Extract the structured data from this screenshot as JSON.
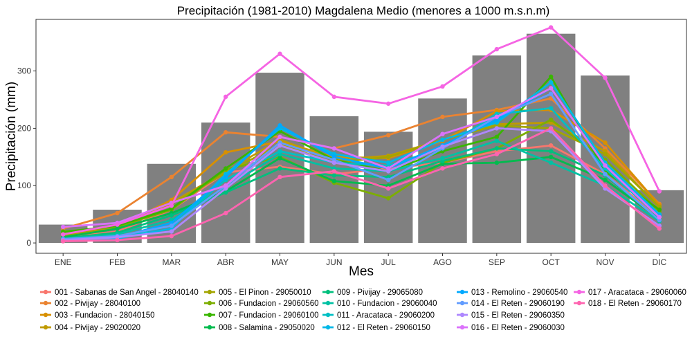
{
  "chart_data": {
    "type": "bar",
    "title": "Precipitación (1981-2010) Magdalena Medio (menores a 1000 m.s.n.m)",
    "xlabel": "Mes",
    "ylabel": "Precipitación (mm)",
    "ylim": [
      -18,
      390
    ],
    "yticks": [
      0,
      100,
      200,
      300
    ],
    "grid": false,
    "legend_position": "bottom",
    "categories": [
      "ENE",
      "FEB",
      "MAR",
      "ABR",
      "MAY",
      "JUN",
      "JUL",
      "AGO",
      "SEP",
      "OCT",
      "NOV",
      "DIC"
    ],
    "bar_color": "#808080",
    "bars": [
      32,
      58,
      138,
      210,
      297,
      221,
      194,
      252,
      327,
      365,
      292,
      92
    ],
    "series": [
      {
        "name": "001 - Sabanas de San Angel - 28040140",
        "color": "#F8766D",
        "values": [
          9,
          20,
          58,
          123,
          133,
          120,
          130,
          140,
          160,
          170,
          120,
          45
        ]
      },
      {
        "name": "002 - Pivijay - 28040100",
        "color": "#EA8331",
        "values": [
          25,
          52,
          115,
          193,
          185,
          165,
          188,
          220,
          232,
          252,
          165,
          68
        ]
      },
      {
        "name": "003 - Fundacion - 28040150",
        "color": "#D89000",
        "values": [
          18,
          28,
          75,
          158,
          177,
          150,
          148,
          178,
          230,
          232,
          175,
          66
        ]
      },
      {
        "name": "004 - Pivijay - 29020020",
        "color": "#C09B00",
        "values": [
          15,
          25,
          70,
          125,
          180,
          145,
          152,
          180,
          207,
          210,
          160,
          62
        ]
      },
      {
        "name": "005 - El Pinon - 29050010",
        "color": "#A3A500",
        "values": [
          14,
          25,
          68,
          122,
          172,
          140,
          150,
          180,
          205,
          200,
          155,
          63
        ]
      },
      {
        "name": "006 - Fundacion - 29060560",
        "color": "#7CAE00",
        "values": [
          20,
          28,
          58,
          128,
          150,
          105,
          78,
          140,
          165,
          215,
          145,
          55
        ]
      },
      {
        "name": "007 - Fundacion - 29060100",
        "color": "#39B600",
        "values": [
          19,
          30,
          60,
          130,
          195,
          145,
          125,
          160,
          185,
          290,
          125,
          58
        ]
      },
      {
        "name": "008 - Salamina - 29050020",
        "color": "#00BB4E",
        "values": [
          10,
          25,
          52,
          90,
          148,
          108,
          100,
          138,
          140,
          150,
          110,
          42
        ]
      },
      {
        "name": "009 - Pivijay - 29065080",
        "color": "#00BF7D",
        "values": [
          8,
          18,
          48,
          88,
          130,
          118,
          115,
          143,
          165,
          160,
          118,
          40
        ]
      },
      {
        "name": "010 - Fundacion - 29060040",
        "color": "#00C1A3",
        "values": [
          7,
          15,
          40,
          98,
          155,
          130,
          125,
          148,
          178,
          140,
          100,
          38
        ]
      },
      {
        "name": "011 - Aracataca - 29060200",
        "color": "#00BFC4",
        "values": [
          5,
          10,
          30,
          110,
          160,
          140,
          135,
          165,
          225,
          235,
          130,
          45
        ]
      },
      {
        "name": "012 - El Reten - 29060150",
        "color": "#00B8E7",
        "values": [
          4,
          8,
          25,
          120,
          200,
          155,
          140,
          180,
          210,
          280,
          140,
          50
        ]
      },
      {
        "name": "013 - Remolino - 29060540",
        "color": "#00A9FF",
        "values": [
          6,
          10,
          35,
          115,
          205,
          150,
          130,
          170,
          215,
          270,
          135,
          48
        ]
      },
      {
        "name": "014 - El Reten - 29060190",
        "color": "#619CFF",
        "values": [
          7,
          12,
          30,
          100,
          175,
          145,
          110,
          165,
          220,
          260,
          120,
          40
        ]
      },
      {
        "name": "015 - El Reten - 29060350",
        "color": "#AE87FF",
        "values": [
          5,
          10,
          20,
          95,
          170,
          140,
          125,
          168,
          200,
          195,
          95,
          30
        ]
      },
      {
        "name": "016 - El Reten - 29060030",
        "color": "#DB72FB",
        "values": [
          28,
          35,
          70,
          100,
          185,
          165,
          130,
          190,
          220,
          270,
          135,
          45
        ]
      },
      {
        "name": "017 - Aracataca - 29060060",
        "color": "#F564E3",
        "values": [
          15,
          32,
          65,
          255,
          330,
          255,
          243,
          273,
          338,
          376,
          288,
          90
        ]
      },
      {
        "name": "018 - El Reten - 29060170",
        "color": "#FF64B0",
        "values": [
          3,
          5,
          12,
          52,
          115,
          125,
          95,
          130,
          155,
          200,
          100,
          25
        ]
      }
    ]
  }
}
